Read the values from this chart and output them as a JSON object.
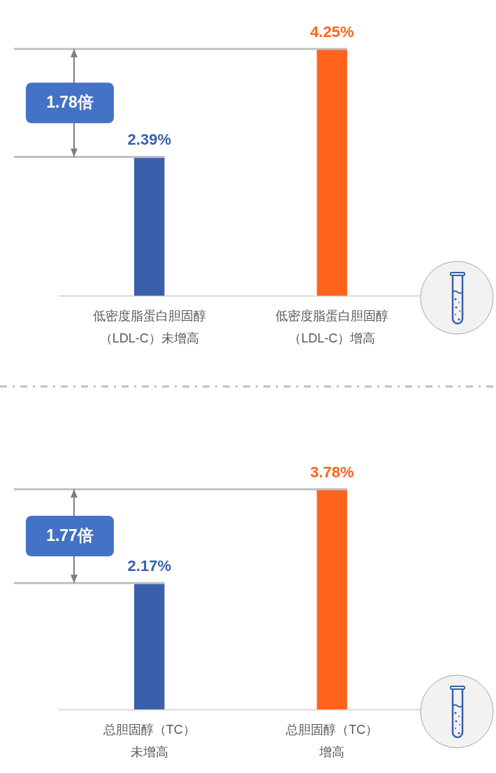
{
  "chart_data": [
    {
      "type": "bar",
      "categories": [
        "低密度脂蛋白胆固醇（LDL-C）未增高",
        "低密度脂蛋白胆固醇（LDL-C）增高"
      ],
      "values": [
        2.39,
        4.25
      ],
      "colors": [
        "#3a5fab",
        "#ff6319"
      ],
      "value_labels": [
        "2.39%",
        "4.25%"
      ],
      "ref_lines": [
        {
          "axis": "y",
          "value": 2.39,
          "color": "#bfbfbf"
        },
        {
          "axis": "y",
          "value": 4.25,
          "color": "#bfbfbf"
        }
      ],
      "annotations": [
        "1.78倍"
      ],
      "tick_labels": "x"
    },
    {
      "type": "bar",
      "categories": [
        "总胆固醇（TC）未增高",
        "总胆固醇（TC）增高"
      ],
      "values": [
        2.17,
        3.78
      ],
      "colors": [
        "#3a5fab",
        "#ff6319"
      ],
      "value_labels": [
        "2.17%",
        "3.78%"
      ],
      "ref_lines": [
        {
          "axis": "y",
          "value": 2.17,
          "color": "#bfbfbf"
        },
        {
          "axis": "y",
          "value": 3.78,
          "color": "#bfbfbf"
        }
      ],
      "annotations": [
        "1.77倍"
      ],
      "tick_labels": "x"
    }
  ]
}
